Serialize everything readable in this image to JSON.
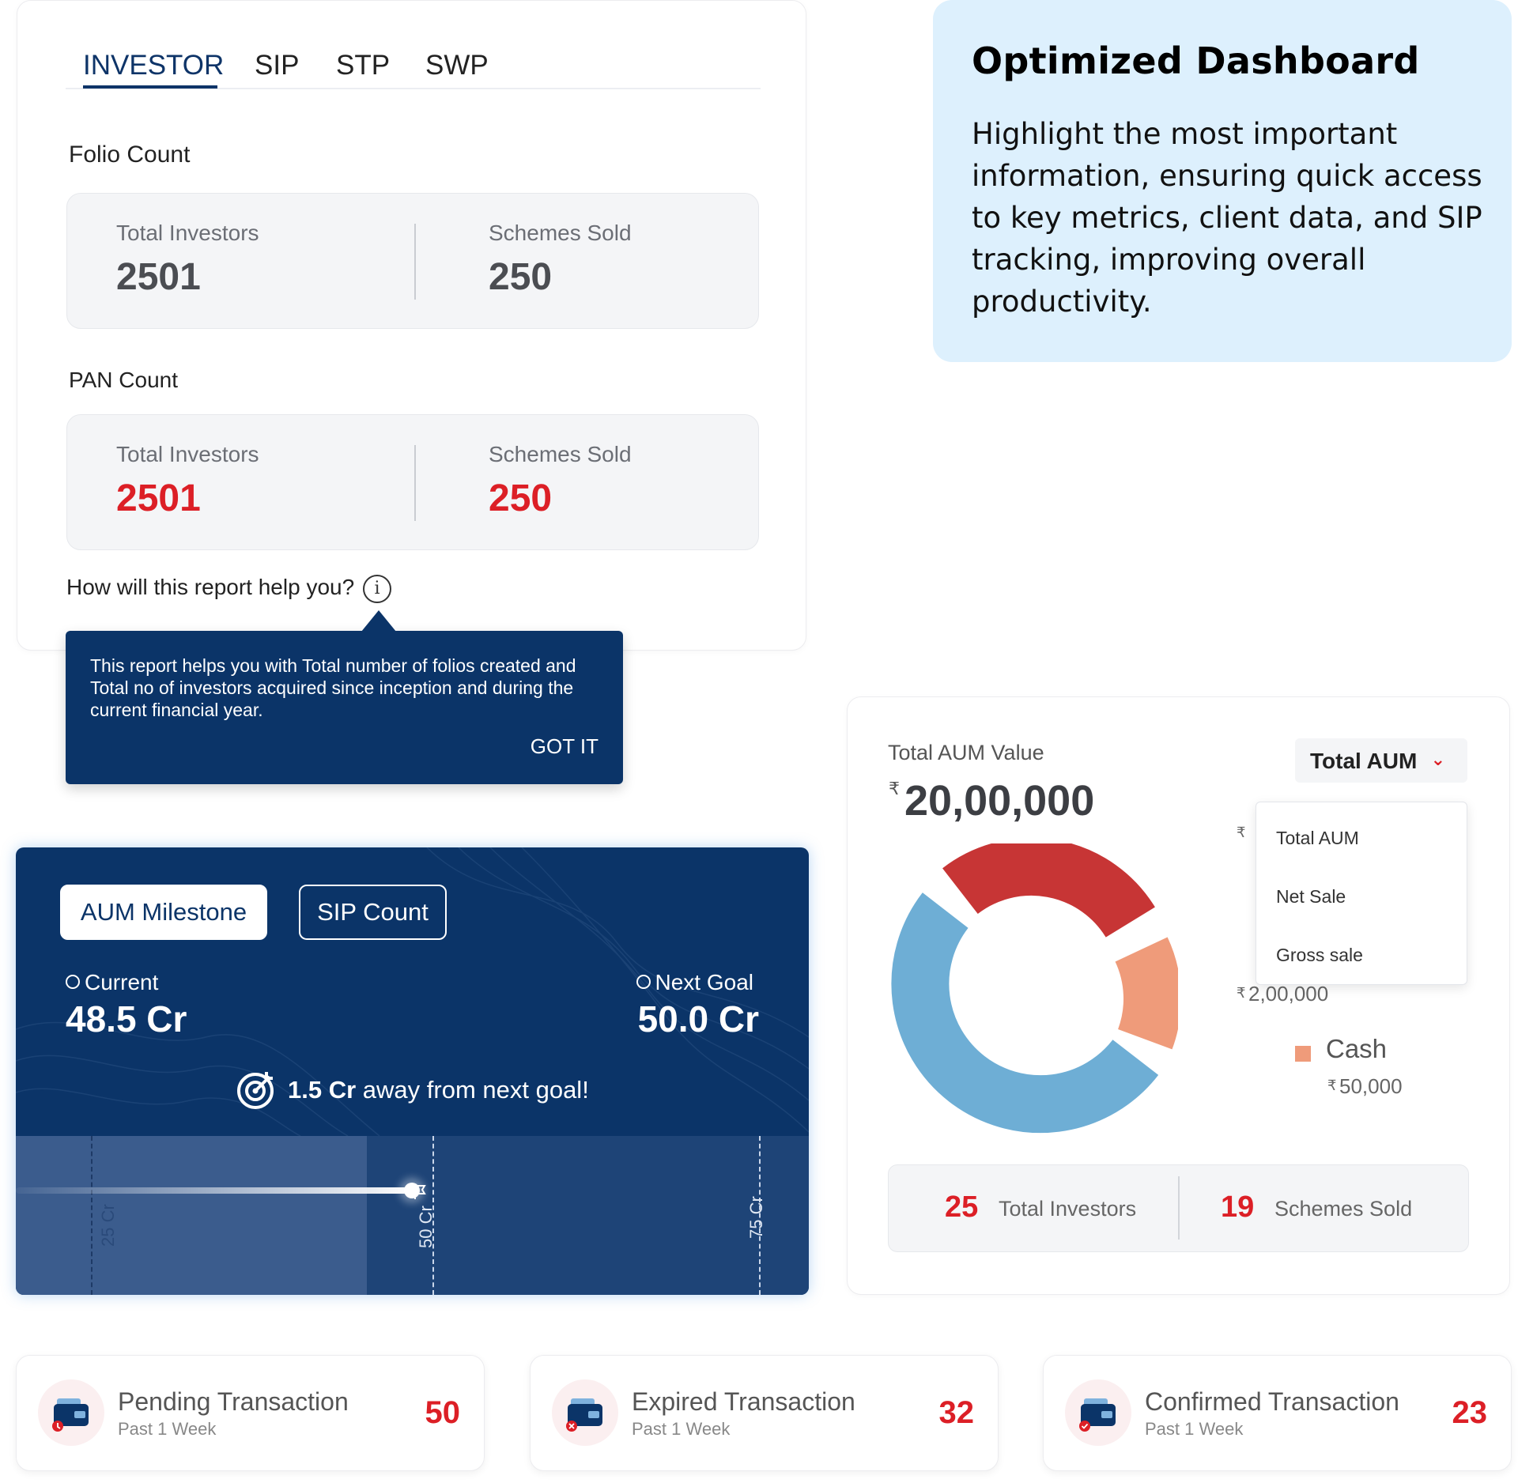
{
  "investor_card": {
    "tabs": [
      {
        "label": "INVESTOR",
        "active": true
      },
      {
        "label": "SIP",
        "active": false
      },
      {
        "label": "STP",
        "active": false
      },
      {
        "label": "SWP",
        "active": false
      }
    ],
    "folio": {
      "title": "Folio Count",
      "investors_label": "Total Investors",
      "investors_value": "2501",
      "schemes_label": "Schemes Sold",
      "schemes_value": "250"
    },
    "pan": {
      "title": "PAN Count",
      "investors_label": "Total Investors",
      "investors_value": "2501",
      "schemes_label": "Schemes Sold",
      "schemes_value": "250"
    },
    "help_question": "How will this report help you?",
    "info_icon": "info-icon",
    "tooltip": {
      "message": "This report helps you with Total number of folios created and Total no of investors acquired since inception and during the current financial year.",
      "action": "GOT IT"
    }
  },
  "note": {
    "title": "Optimized Dashboard",
    "body": "Highlight the most important information, ensuring quick access to key metrics, client data, and SIP tracking, improving overall productivity."
  },
  "milestone": {
    "buttons": [
      {
        "label": "AUM Milestone",
        "active": true
      },
      {
        "label": "SIP Count",
        "active": false
      }
    ],
    "current_label": "Current",
    "current_value": "48.5 Cr",
    "next_label": "Next Goal",
    "next_value": "50.0 Cr",
    "away_amount": "1.5 Cr",
    "away_text": " away from next goal!",
    "ticks": [
      "25 Cr",
      "50 Cr",
      "75 Cr"
    ],
    "progress_value_cr": 48.5
  },
  "aum": {
    "title": "Total AUM Value",
    "currency": "₹",
    "value": "20,00,000",
    "dropdown": {
      "selected": "Total AUM",
      "options": [
        "Total AUM",
        "Net Sale",
        "Gross sale"
      ]
    },
    "legend": [
      {
        "name": "",
        "value": "2,00,000"
      },
      {
        "name": "Cash",
        "value": "50,000",
        "color": "#EF9B7A"
      }
    ],
    "investors_value": "25",
    "investors_label": "Total Investors",
    "schemes_value": "19",
    "schemes_label": "Schemes Sold"
  },
  "transactions": [
    {
      "title": "Pending Transaction",
      "subtitle": "Past 1 Week",
      "count": "50",
      "icon": "wallet-pending-icon"
    },
    {
      "title": "Expired Transaction",
      "subtitle": "Past 1 Week",
      "count": "32",
      "icon": "wallet-expired-icon"
    },
    {
      "title": "Confirmed Transaction",
      "subtitle": "Past 1 Week",
      "count": "23",
      "icon": "wallet-confirmed-icon"
    }
  ],
  "colors": {
    "navy": "#0B3468",
    "accent_red": "#DC1F26",
    "note_bg": "#DDF0FD",
    "donut_red": "#C73535",
    "donut_salmon": "#EF9B7A",
    "donut_blue": "#6EAED5"
  }
}
